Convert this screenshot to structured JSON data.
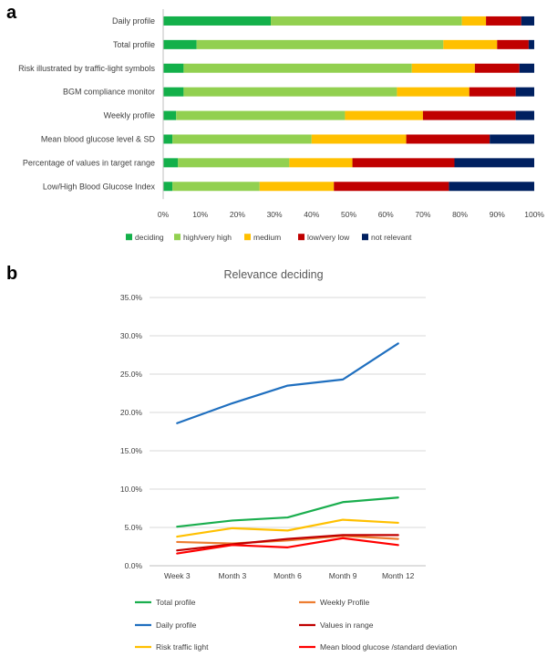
{
  "panels": {
    "a": {
      "letter": "a"
    },
    "b": {
      "letter": "b"
    }
  },
  "chart_data": [
    {
      "panel": "a",
      "type": "bar",
      "orientation": "horizontal",
      "stacked": true,
      "normalized": true,
      "categories": [
        "Daily profile",
        "Total profile",
        "Risk illustrated by traffic-light symbols",
        "BGM compliance monitor",
        "Weekly profile",
        "Mean blood glucose level & SD",
        "Percentage of values in target range",
        "Low/High Blood Glucose Index"
      ],
      "series": [
        {
          "name": "deciding",
          "color": "#13b04a",
          "values": [
            29,
            9,
            5.5,
            5.5,
            3.5,
            2.5,
            4,
            2.5
          ]
        },
        {
          "name": "high/very high",
          "color": "#92d050",
          "values": [
            51.5,
            66.5,
            61.5,
            57.5,
            45.5,
            37.5,
            30,
            23.5
          ]
        },
        {
          "name": "medium",
          "color": "#ffc000",
          "values": [
            6.5,
            14.5,
            17,
            19.5,
            21,
            25.5,
            17,
            20
          ]
        },
        {
          "name": "low/very low",
          "color": "#c00000",
          "values": [
            9.5,
            8.5,
            12,
            12.5,
            25,
            22.5,
            27.5,
            31
          ]
        },
        {
          "name": "not relevant",
          "color": "#002060",
          "values": [
            3.5,
            1.5,
            4,
            5,
            5,
            12,
            21.5,
            23
          ]
        }
      ],
      "xlim": [
        0,
        100
      ],
      "xticks": [
        "0%",
        "10%",
        "20%",
        "30%",
        "40%",
        "50%",
        "60%",
        "70%",
        "80%",
        "90%",
        "100%"
      ],
      "grid": false,
      "legend": "bottom"
    },
    {
      "panel": "b",
      "type": "line",
      "title": "Relevance deciding",
      "x": [
        "Week 3",
        "Month 3",
        "Month 6",
        "Month 9",
        "Month 12"
      ],
      "ylim": [
        0,
        35
      ],
      "yticks": [
        "0.0%",
        "5.0%",
        "10.0%",
        "15.0%",
        "20.0%",
        "25.0%",
        "30.0%",
        "35.0%"
      ],
      "grid": true,
      "legend": "bottom",
      "series": [
        {
          "name": "Total profile",
          "color": "#1aae4e",
          "values": [
            5.1,
            5.9,
            6.3,
            8.3,
            8.9
          ]
        },
        {
          "name": "Weekly Profile",
          "color": "#ed7d31",
          "values": [
            3.1,
            2.9,
            3.3,
            3.9,
            3.5
          ]
        },
        {
          "name": "Daily profile",
          "color": "#1f6fbf",
          "values": [
            18.6,
            21.2,
            23.5,
            24.3,
            29.0
          ]
        },
        {
          "name": "Values in range",
          "color": "#c00000",
          "values": [
            2.0,
            2.8,
            3.5,
            4.0,
            4.0
          ]
        },
        {
          "name": "Risk traffic light",
          "color": "#ffc000",
          "values": [
            3.8,
            4.9,
            4.6,
            6.0,
            5.6
          ]
        },
        {
          "name": "Mean blood glucose /standard deviation",
          "color": "#ff0000",
          "values": [
            1.6,
            2.7,
            2.4,
            3.6,
            2.7
          ]
        }
      ]
    }
  ]
}
